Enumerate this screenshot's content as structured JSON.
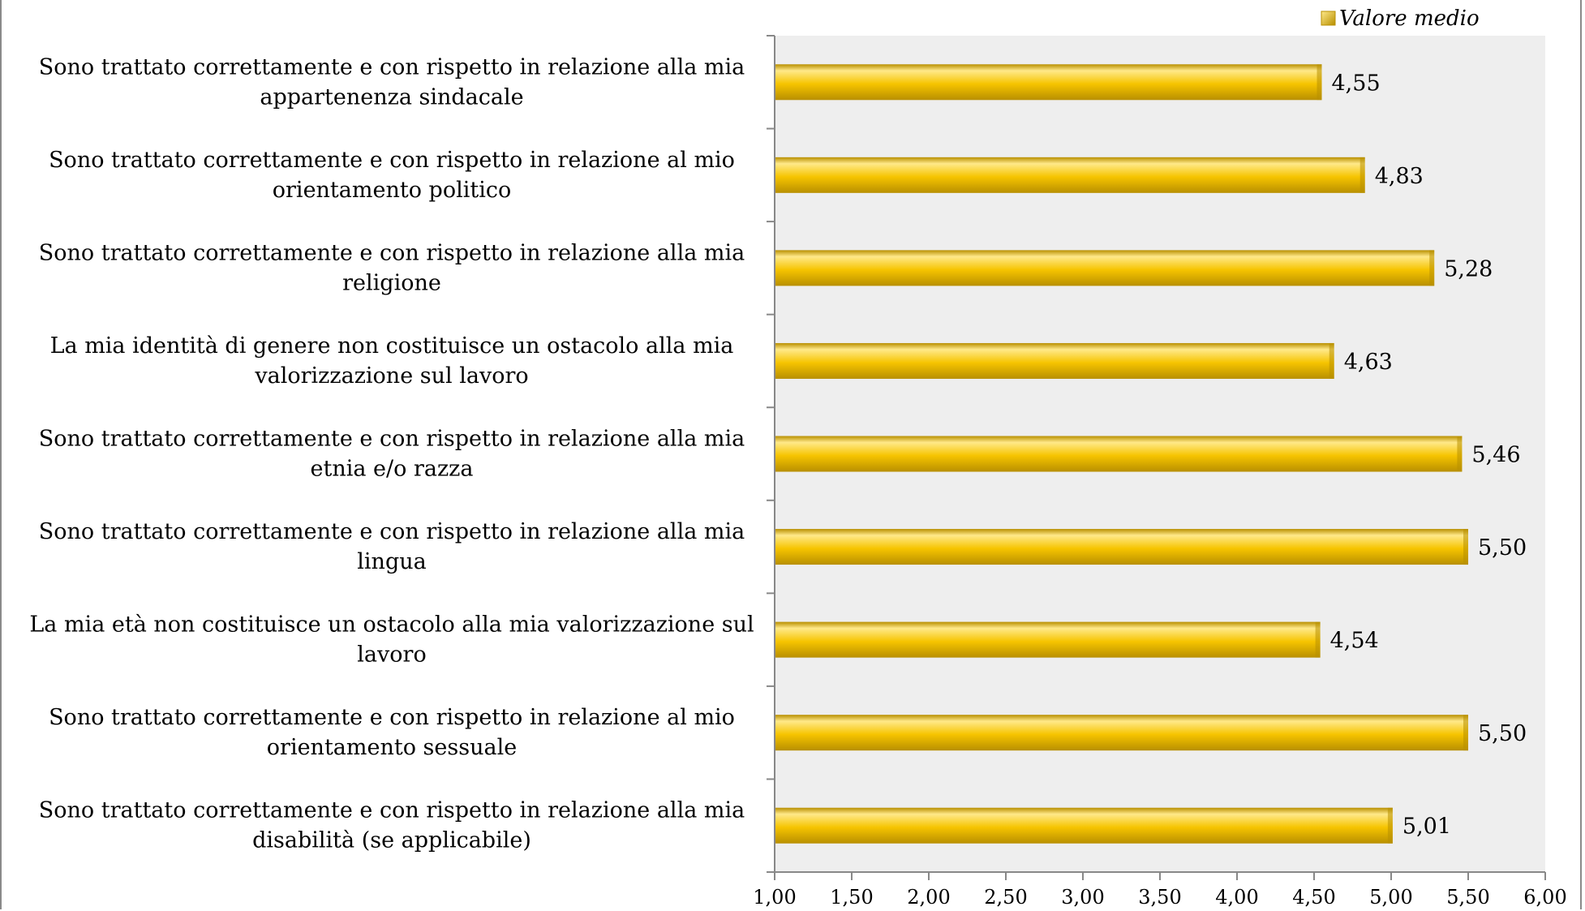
{
  "chart_data": {
    "type": "bar",
    "orientation": "horizontal",
    "categories": [
      [
        "Sono trattato correttamente e con rispetto in relazione alla mia",
        "appartenenza sindacale"
      ],
      [
        "Sono trattato correttamente e con rispetto in relazione al mio",
        "orientamento politico"
      ],
      [
        "Sono trattato correttamente e con rispetto in relazione alla mia",
        "religione"
      ],
      [
        "La mia identità di genere non costituisce un ostacolo alla mia",
        "valorizzazione sul lavoro"
      ],
      [
        "Sono trattato correttamente e con rispetto in relazione alla mia",
        "etnia e/o razza"
      ],
      [
        "Sono trattato correttamente e con rispetto in relazione alla mia",
        "lingua"
      ],
      [
        "La mia età non costituisce un ostacolo alla mia valorizzazione sul",
        "lavoro"
      ],
      [
        "Sono trattato correttamente e con rispetto in relazione al mio",
        "orientamento sessuale"
      ],
      [
        "Sono trattato correttamente e con rispetto in relazione alla mia",
        "disabilità (se applicabile)"
      ]
    ],
    "series": [
      {
        "name": "Valore medio",
        "values": [
          4.55,
          4.83,
          5.28,
          4.63,
          5.46,
          5.5,
          4.54,
          5.5,
          5.01
        ],
        "value_labels": [
          "4,55",
          "4,83",
          "5,28",
          "4,63",
          "5,46",
          "5,50",
          "4,54",
          "5,50",
          "5,01"
        ]
      }
    ],
    "xlim": [
      1.0,
      6.0
    ],
    "xticks": [
      1.0,
      1.5,
      2.0,
      2.5,
      3.0,
      3.5,
      4.0,
      4.5,
      5.0,
      5.5,
      6.0
    ],
    "xtick_labels": [
      "1,00",
      "1,50",
      "2,00",
      "2,50",
      "3,00",
      "3,50",
      "4,00",
      "4,50",
      "5,00",
      "5,50",
      "6,00"
    ],
    "grid": false,
    "legend_position": "top-right",
    "colors": {
      "bar": "#f6c400",
      "bar_light": "#ffe98a",
      "bar_dark": "#b88f00",
      "plot_background": "#eeeeee",
      "axis": "#888888"
    }
  }
}
